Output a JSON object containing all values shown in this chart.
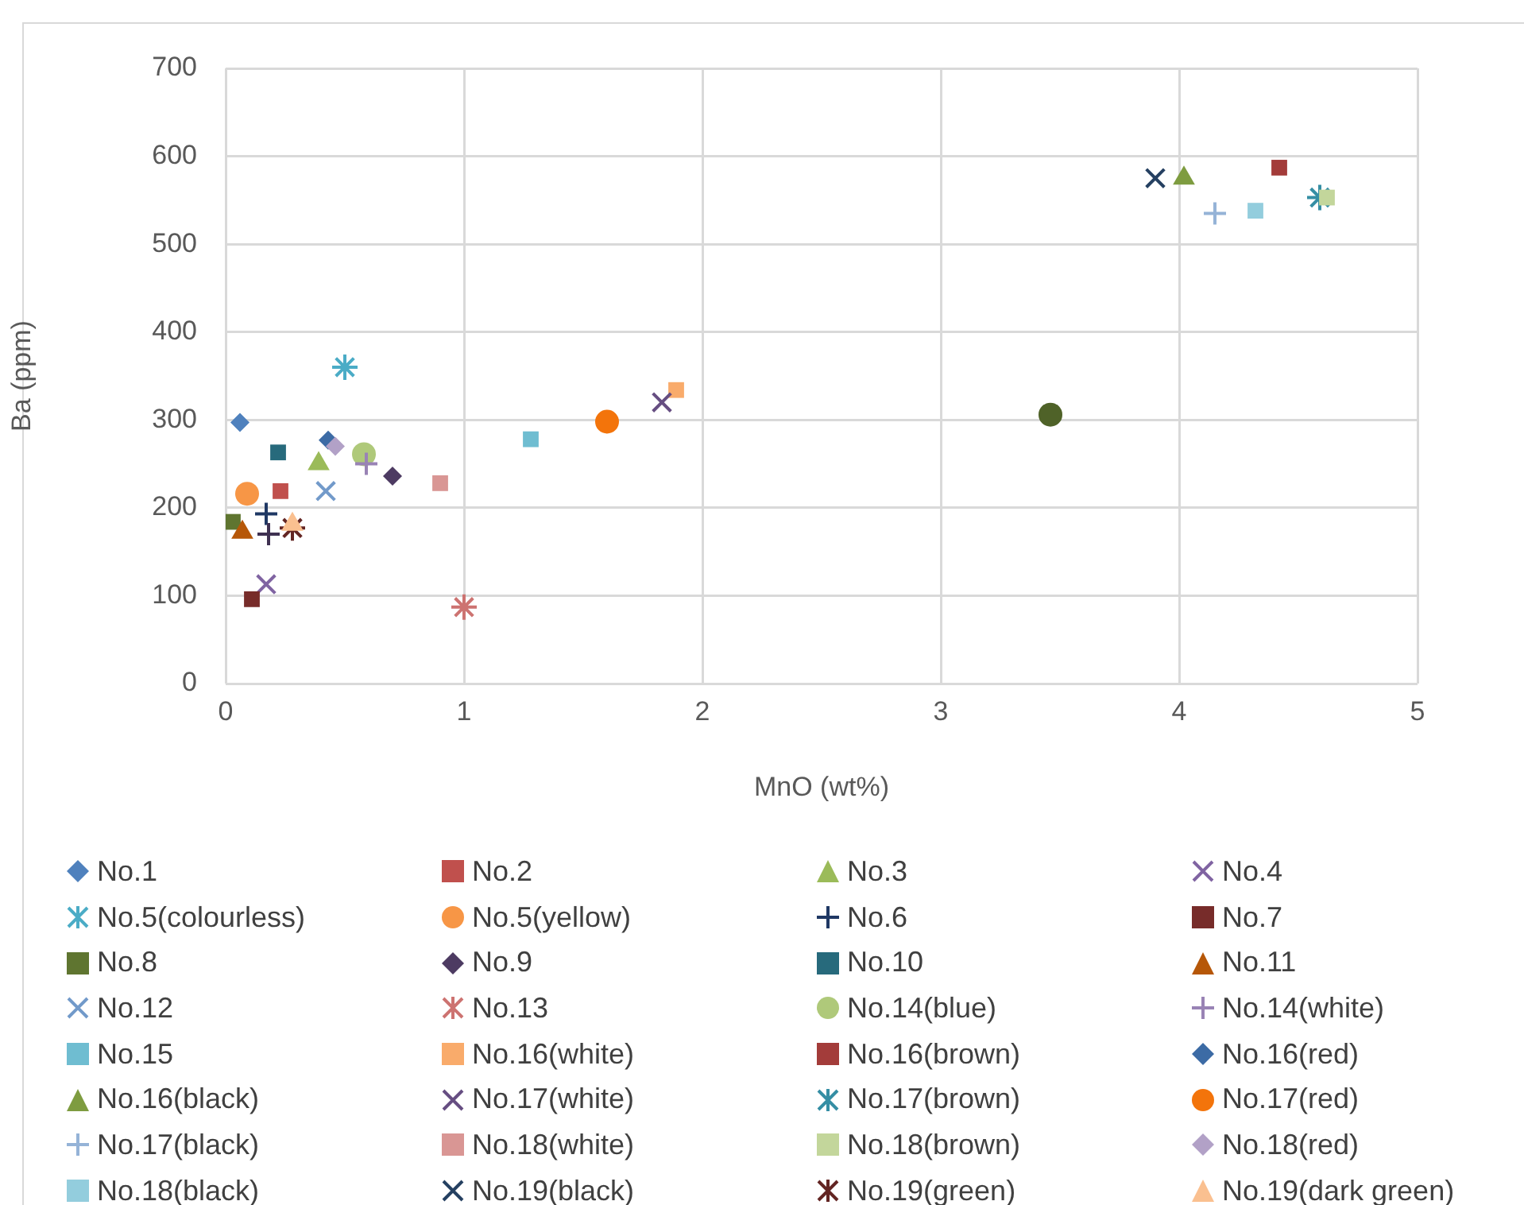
{
  "chart_data": {
    "type": "scatter",
    "xlabel": "MnO (wt%)",
    "ylabel": "Ba (ppm)",
    "xlim": [
      0,
      5
    ],
    "xticks": [
      0,
      1,
      2,
      3,
      4,
      5
    ],
    "ylim": [
      0,
      700
    ],
    "yticks": [
      0,
      100,
      200,
      300,
      400,
      500,
      600,
      700
    ],
    "grid": true,
    "legend": "bottom",
    "series": [
      {
        "name": "No.1",
        "color": "#4f81bd",
        "marker": "diamond",
        "x": [
          0.06
        ],
        "values": [
          297
        ]
      },
      {
        "name": "No.2",
        "color": "#c0504d",
        "marker": "square",
        "x": [
          0.23
        ],
        "values": [
          219
        ]
      },
      {
        "name": "No.3",
        "color": "#9bbb59",
        "marker": "triangle",
        "x": [
          0.39
        ],
        "values": [
          250
        ]
      },
      {
        "name": "No.4",
        "color": "#8064a2",
        "marker": "x",
        "x": [
          0.17
        ],
        "values": [
          113
        ]
      },
      {
        "name": "No.5(colourless)",
        "color": "#4bacc6",
        "marker": "cross",
        "x": [
          0.5
        ],
        "values": [
          360
        ]
      },
      {
        "name": "No.5(yellow)",
        "color": "#f79646",
        "marker": "circle",
        "x": [
          0.09
        ],
        "values": [
          216
        ]
      },
      {
        "name": "No.6",
        "color": "#1f3864",
        "marker": "plus",
        "x": [
          0.17
        ],
        "values": [
          193
        ]
      },
      {
        "name": "No.7",
        "color": "#772c2a",
        "marker": "square",
        "x": [
          0.11
        ],
        "values": [
          96
        ]
      },
      {
        "name": "No.8",
        "color": "#5f7530",
        "marker": "square",
        "x": [
          0.03
        ],
        "values": [
          184
        ]
      },
      {
        "name": "No.9",
        "color": "#4d3b62",
        "marker": "diamond",
        "x": [
          0.7
        ],
        "values": [
          236
        ]
      },
      {
        "name": "No.10",
        "color": "#276a7c",
        "marker": "square",
        "x": [
          0.22
        ],
        "values": [
          263
        ]
      },
      {
        "name": "No.11",
        "color": "#b65708",
        "marker": "triangle",
        "x": [
          0.07
        ],
        "values": [
          172
        ]
      },
      {
        "name": "No.12",
        "color": "#729aca",
        "marker": "x",
        "x": [
          0.42
        ],
        "values": [
          219
        ]
      },
      {
        "name": "No.13",
        "color": "#cd7371",
        "marker": "cross",
        "x": [
          1.0
        ],
        "values": [
          87
        ]
      },
      {
        "name": "No.14(blue)",
        "color": "#afc97a",
        "marker": "circle",
        "x": [
          0.58
        ],
        "values": [
          261
        ]
      },
      {
        "name": "No.14(white)",
        "color": "#9983b5",
        "marker": "plus",
        "x": [
          0.59
        ],
        "values": [
          250
        ]
      },
      {
        "name": "No.15",
        "color": "#6fbdd1",
        "marker": "square",
        "x": [
          1.28
        ],
        "values": [
          278
        ]
      },
      {
        "name": "No.16(white)",
        "color": "#f9ab6b",
        "marker": "square",
        "x": [
          1.89
        ],
        "values": [
          334
        ]
      },
      {
        "name": "No.16(brown)",
        "color": "#a33c3a",
        "marker": "square",
        "x": [
          4.42
        ],
        "values": [
          587
        ]
      },
      {
        "name": "No.16(red)",
        "color": "#3c6ba5",
        "marker": "diamond",
        "x": [
          0.43
        ],
        "values": [
          277
        ]
      },
      {
        "name": "No.16(black)",
        "color": "#7e9c40",
        "marker": "triangle",
        "x": [
          4.02
        ],
        "values": [
          575
        ]
      },
      {
        "name": "No.17(white)",
        "color": "#664e82",
        "marker": "x",
        "x": [
          1.83
        ],
        "values": [
          320
        ]
      },
      {
        "name": "No.17(brown)",
        "color": "#358ea4",
        "marker": "cross",
        "x": [
          4.59
        ],
        "values": [
          553
        ]
      },
      {
        "name": "No.17(red)",
        "color": "#f3740b",
        "marker": "circle",
        "x": [
          1.6
        ],
        "values": [
          298
        ]
      },
      {
        "name": "No.17(black)",
        "color": "#95b3d7",
        "marker": "plus",
        "x": [
          4.15
        ],
        "values": [
          535
        ]
      },
      {
        "name": "No.18(white)",
        "color": "#d99694",
        "marker": "square",
        "x": [
          0.9
        ],
        "values": [
          228
        ]
      },
      {
        "name": "No.18(brown)",
        "color": "#c3d69b",
        "marker": "square",
        "x": [
          4.62
        ],
        "values": [
          553
        ]
      },
      {
        "name": "No.18(red)",
        "color": "#b2a1c7",
        "marker": "diamond",
        "x": [
          0.46
        ],
        "values": [
          270
        ]
      },
      {
        "name": "No.18(black)",
        "color": "#93cddd",
        "marker": "square",
        "x": [
          4.32
        ],
        "values": [
          538
        ]
      },
      {
        "name": "No.19(black)",
        "color": "#254061",
        "marker": "x",
        "x": [
          3.9
        ],
        "values": [
          575
        ]
      },
      {
        "name": "No.19(green)",
        "color": "#632523",
        "marker": "cross",
        "x": [
          0.28
        ],
        "values": [
          177
        ]
      },
      {
        "name": "No.19(dark green)",
        "color": "#fac090",
        "marker": "triangle",
        "x": [
          0.28
        ],
        "values": [
          181
        ]
      },
      {
        "color": "#4f6228",
        "marker": "circle",
        "x": [
          3.46
        ],
        "values": [
          306
        ]
      },
      {
        "color": "#3f3151",
        "marker": "plus",
        "x": [
          0.18
        ],
        "values": [
          170
        ]
      }
    ]
  }
}
